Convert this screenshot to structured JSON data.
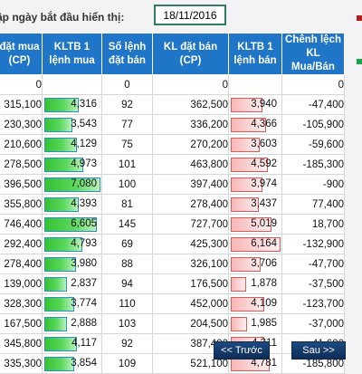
{
  "filter": {
    "label": "ập ngày bắt đầu hiển thị:",
    "date_value": "18/11/2016"
  },
  "colors": {
    "header_bg": "#1f76c8",
    "buy_bar": "#36c235",
    "sell_bar": "#f7b7b7",
    "legend_red": "#b71c1c",
    "legend_green": "#18a64a"
  },
  "table": {
    "headers": [
      [
        "đặt mua",
        "(CP)"
      ],
      [
        "KLTB 1",
        "lệnh mua"
      ],
      [
        "Số lệnh",
        "đặt bán"
      ],
      [
        "KL đặt bán",
        "(CP)"
      ],
      [
        "KLTB 1",
        "lệnh bán"
      ],
      [
        "Chênh lệch",
        "KL Mua/Bán"
      ]
    ],
    "rows": [
      {
        "buy_vol": "0",
        "avg_buy": "",
        "sell_orders": "0",
        "sell_vol": "0",
        "avg_sell": "",
        "diff": "0",
        "buy_fill": 0,
        "sell_fill": 0
      },
      {
        "buy_vol": "315,100",
        "avg_buy": "4,316",
        "sell_orders": "92",
        "sell_vol": "362,500",
        "avg_sell": "3,940",
        "diff": "-47,400",
        "buy_fill": 0.61,
        "sell_fill": 0.64
      },
      {
        "buy_vol": "230,300",
        "avg_buy": "3,543",
        "sell_orders": "77",
        "sell_vol": "336,200",
        "avg_sell": "4,366",
        "diff": "-105,900",
        "buy_fill": 0.5,
        "sell_fill": 0.71
      },
      {
        "buy_vol": "210,600",
        "avg_buy": "4,129",
        "sell_orders": "75",
        "sell_vol": "270,200",
        "avg_sell": "3,603",
        "diff": "-59,600",
        "buy_fill": 0.58,
        "sell_fill": 0.58
      },
      {
        "buy_vol": "278,500",
        "avg_buy": "4,973",
        "sell_orders": "101",
        "sell_vol": "463,800",
        "avg_sell": "4,592",
        "diff": "-185,300",
        "buy_fill": 0.7,
        "sell_fill": 0.75
      },
      {
        "buy_vol": "396,500",
        "avg_buy": "7,080",
        "sell_orders": "100",
        "sell_vol": "397,400",
        "avg_sell": "3,974",
        "diff": "-900",
        "buy_fill": 1.0,
        "sell_fill": 0.64
      },
      {
        "buy_vol": "355,800",
        "avg_buy": "4,393",
        "sell_orders": "81",
        "sell_vol": "278,400",
        "avg_sell": "3,437",
        "diff": "77,400",
        "buy_fill": 0.62,
        "sell_fill": 0.56
      },
      {
        "buy_vol": "746,400",
        "avg_buy": "6,605",
        "sell_orders": "145",
        "sell_vol": "727,700",
        "avg_sell": "5,019",
        "diff": "18,700",
        "buy_fill": 0.93,
        "sell_fill": 0.81
      },
      {
        "buy_vol": "292,400",
        "avg_buy": "4,793",
        "sell_orders": "69",
        "sell_vol": "425,300",
        "avg_sell": "6,164",
        "diff": "-132,900",
        "buy_fill": 0.68,
        "sell_fill": 1.0
      },
      {
        "buy_vol": "278,400",
        "avg_buy": "3,980",
        "sell_orders": "88",
        "sell_vol": "326,100",
        "avg_sell": "3,706",
        "diff": "-47,700",
        "buy_fill": 0.56,
        "sell_fill": 0.6
      },
      {
        "buy_vol": "139,000",
        "avg_buy": "2,837",
        "sell_orders": "94",
        "sell_vol": "176,500",
        "avg_sell": "1,878",
        "sell_orders_note": "",
        "diff": "-37,500",
        "buy_fill": 0.4,
        "sell_fill": 0.3
      },
      {
        "buy_vol": "328,300",
        "avg_buy": "3,774",
        "sell_orders": "110",
        "sell_vol": "452,000",
        "avg_sell": "4,109",
        "diff": "-123,700",
        "buy_fill": 0.53,
        "sell_fill": 0.67
      },
      {
        "buy_vol": "167,500",
        "avg_buy": "2,888",
        "sell_orders": "103",
        "sell_vol": "204,500",
        "avg_sell": "1,985",
        "diff": "-37,000",
        "buy_fill": 0.41,
        "sell_fill": 0.32
      },
      {
        "buy_vol": "345,800",
        "avg_buy": "4,117",
        "sell_orders": "92",
        "sell_vol": "387,400",
        "avg_sell": "4,211",
        "diff": "-41,600",
        "buy_fill": 0.58,
        "sell_fill": 0.68
      },
      {
        "buy_vol": "335,300",
        "avg_buy": "3,854",
        "sell_orders": "109",
        "sell_vol": "521,100",
        "avg_sell": "4,781",
        "diff": "-185,800",
        "buy_fill": 0.54,
        "sell_fill": 0.78
      }
    ]
  },
  "pagination": {
    "prev_label": "<< Trước",
    "next_label": "Sau >>"
  }
}
